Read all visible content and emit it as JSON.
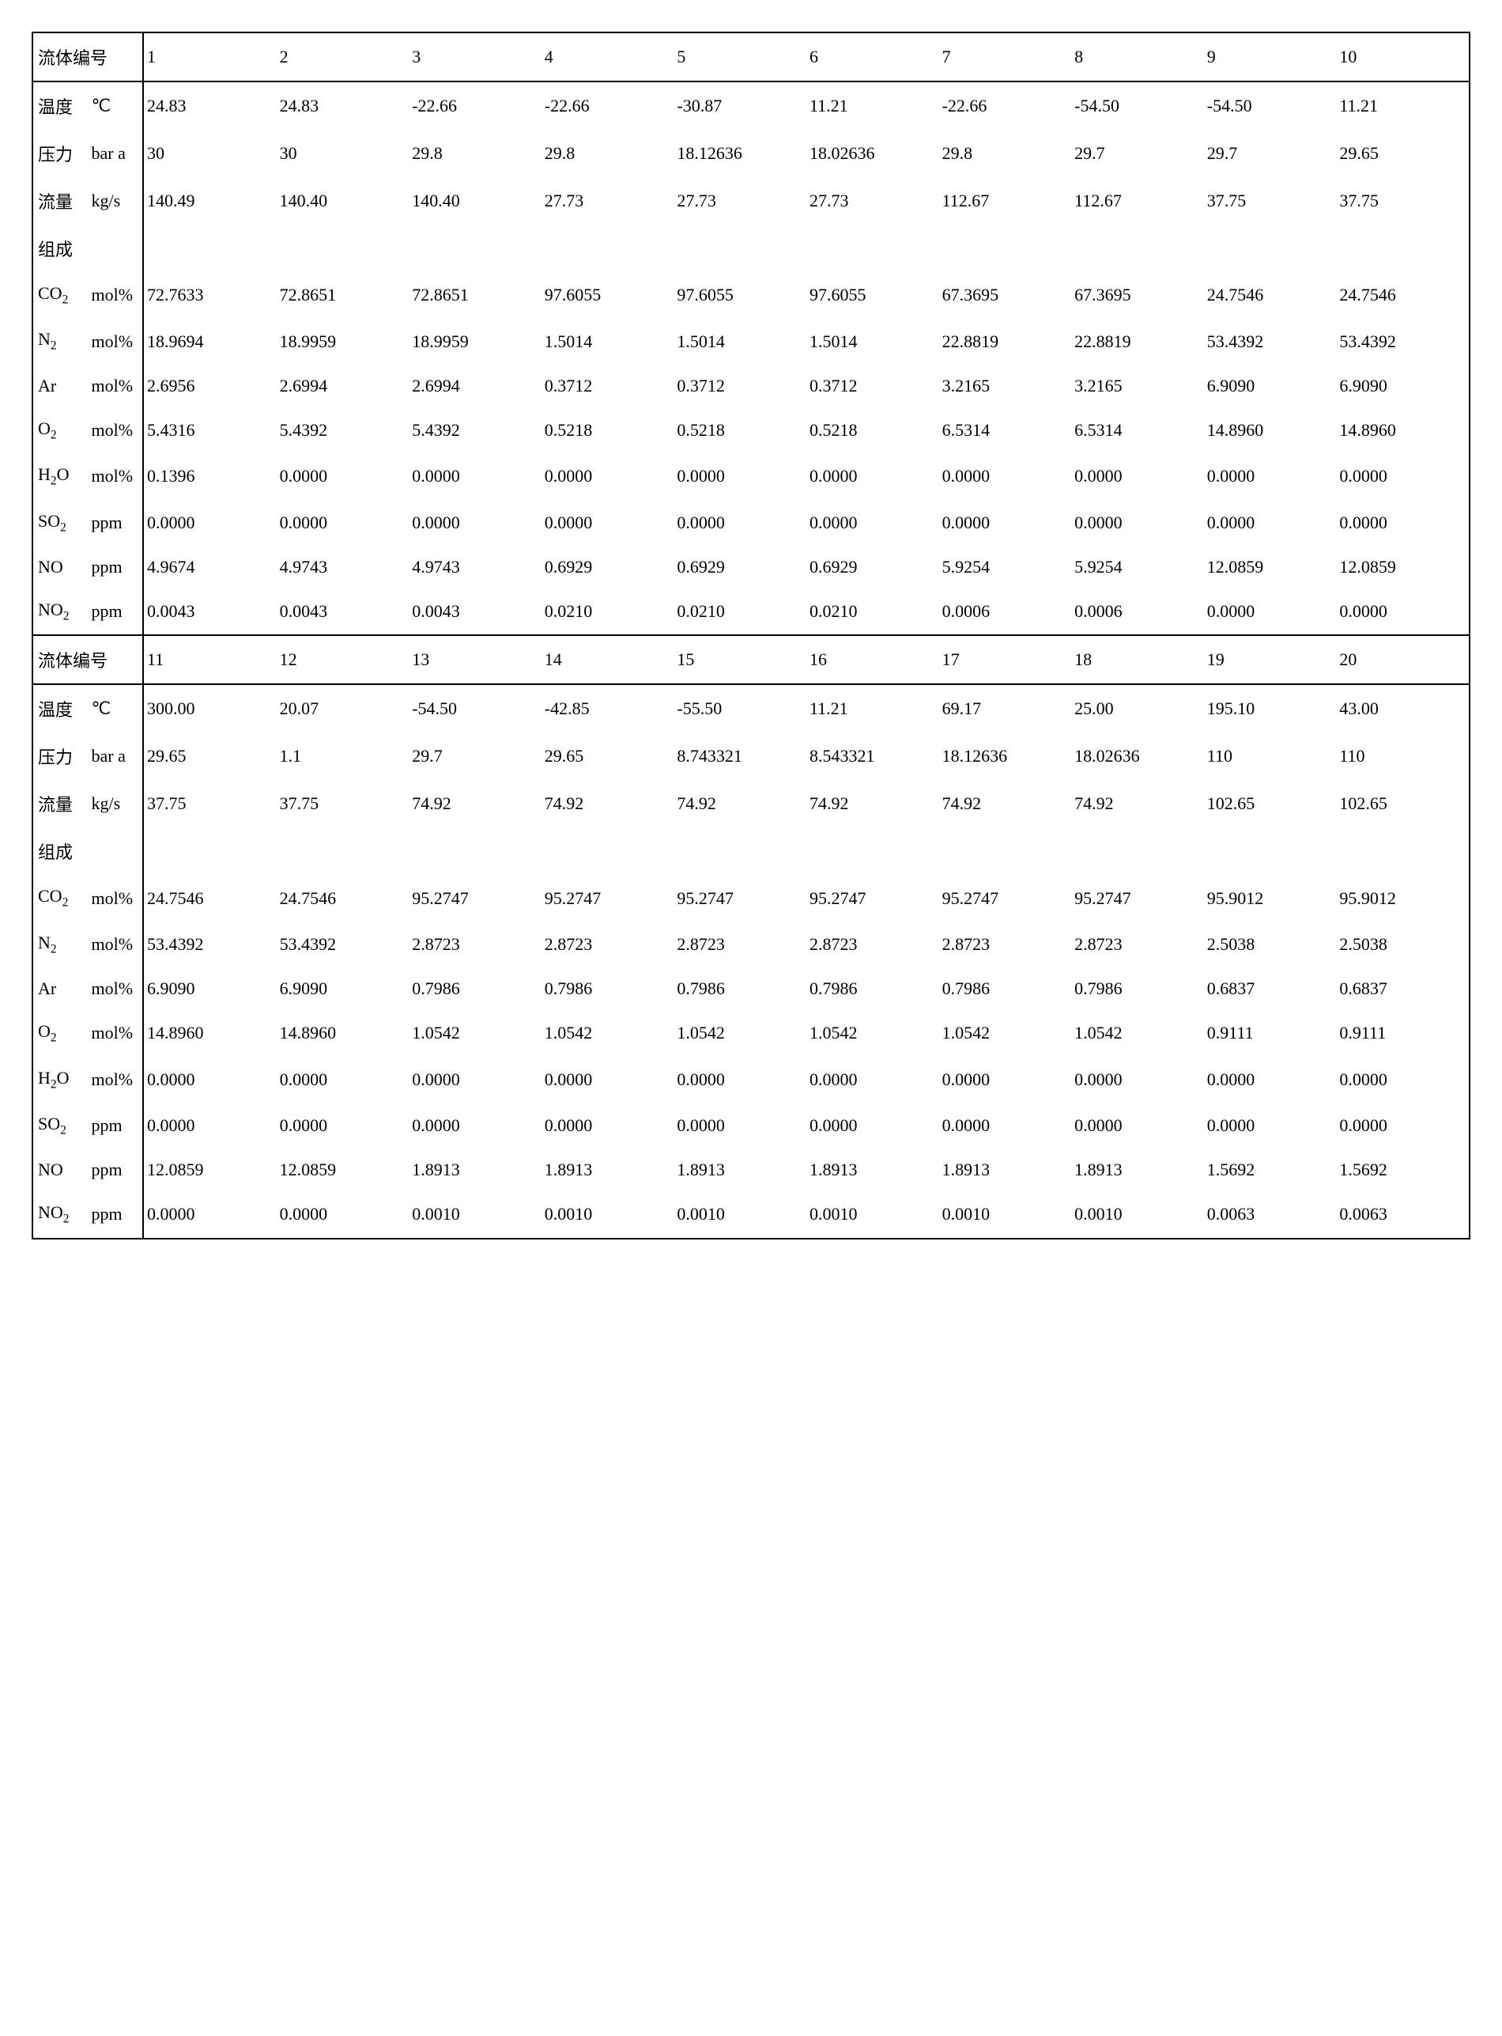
{
  "sections": [
    {
      "header_label": "流体编号",
      "col_headers": [
        "1",
        "2",
        "3",
        "4",
        "5",
        "6",
        "7",
        "8",
        "9",
        "10"
      ],
      "rows": [
        {
          "label": "温度",
          "unit": "℃",
          "values": [
            "24.83",
            "24.83",
            "-22.66",
            "-22.66",
            "-30.87",
            "11.21",
            "-22.66",
            "-54.50",
            "-54.50",
            "11.21"
          ]
        },
        {
          "label": "压力",
          "unit": "bar a",
          "values": [
            "30",
            "30",
            "29.8",
            "29.8",
            "18.12636",
            "18.02636",
            "29.8",
            "29.7",
            "29.7",
            "29.65"
          ]
        },
        {
          "label": "流量",
          "unit": "kg/s",
          "values": [
            "140.49",
            "140.40",
            "140.40",
            "27.73",
            "27.73",
            "27.73",
            "112.67",
            "112.67",
            "37.75",
            "37.75"
          ]
        },
        {
          "label": "组成",
          "unit": "",
          "values": [
            "",
            "",
            "",
            "",
            "",
            "",
            "",
            "",
            "",
            ""
          ]
        },
        {
          "label_html": "CO<sub>2</sub>",
          "unit": "mol%",
          "values": [
            "72.7633",
            "72.8651",
            "72.8651",
            "97.6055",
            "97.6055",
            "97.6055",
            "67.3695",
            "67.3695",
            "24.7546",
            "24.7546"
          ]
        },
        {
          "label_html": "N<sub>2</sub>",
          "unit": "mol%",
          "values": [
            "18.9694",
            "18.9959",
            "18.9959",
            "1.5014",
            "1.5014",
            "1.5014",
            "22.8819",
            "22.8819",
            "53.4392",
            "53.4392"
          ]
        },
        {
          "label": "Ar",
          "unit": "mol%",
          "values": [
            "2.6956",
            "2.6994",
            "2.6994",
            "0.3712",
            "0.3712",
            "0.3712",
            "3.2165",
            "3.2165",
            "6.9090",
            "6.9090"
          ]
        },
        {
          "label_html": "O<sub>2</sub>",
          "unit": "mol%",
          "values": [
            "5.4316",
            "5.4392",
            "5.4392",
            "0.5218",
            "0.5218",
            "0.5218",
            "6.5314",
            "6.5314",
            "14.8960",
            "14.8960"
          ]
        },
        {
          "label_html": "H<sub>2</sub>O",
          "unit": "mol%",
          "values": [
            "0.1396",
            "0.0000",
            "0.0000",
            "0.0000",
            "0.0000",
            "0.0000",
            "0.0000",
            "0.0000",
            "0.0000",
            "0.0000"
          ]
        },
        {
          "label_html": "SO<sub>2</sub>",
          "unit": "ppm",
          "values": [
            "0.0000",
            "0.0000",
            "0.0000",
            "0.0000",
            "0.0000",
            "0.0000",
            "0.0000",
            "0.0000",
            "0.0000",
            "0.0000"
          ]
        },
        {
          "label": "NO",
          "unit": "ppm",
          "values": [
            "4.9674",
            "4.9743",
            "4.9743",
            "0.6929",
            "0.6929",
            "0.6929",
            "5.9254",
            "5.9254",
            "12.0859",
            "12.0859"
          ]
        },
        {
          "label_html": "NO<sub>2</sub>",
          "unit": "ppm",
          "values": [
            "0.0043",
            "0.0043",
            "0.0043",
            "0.0210",
            "0.0210",
            "0.0210",
            "0.0006",
            "0.0006",
            "0.0000",
            "0.0000"
          ]
        }
      ]
    },
    {
      "header_label": "流体编号",
      "col_headers": [
        "11",
        "12",
        "13",
        "14",
        "15",
        "16",
        "17",
        "18",
        "19",
        "20"
      ],
      "rows": [
        {
          "label": "温度",
          "unit": "℃",
          "values": [
            "300.00",
            "20.07",
            "-54.50",
            "-42.85",
            "-55.50",
            "11.21",
            "69.17",
            "25.00",
            "195.10",
            "43.00"
          ]
        },
        {
          "label": "压力",
          "unit": "bar a",
          "values": [
            "29.65",
            "1.1",
            "29.7",
            "29.65",
            "8.743321",
            "8.543321",
            "18.12636",
            "18.02636",
            "110",
            "110"
          ]
        },
        {
          "label": "流量",
          "unit": "kg/s",
          "values": [
            "37.75",
            "37.75",
            "74.92",
            "74.92",
            "74.92",
            "74.92",
            "74.92",
            "74.92",
            "102.65",
            "102.65"
          ]
        },
        {
          "label": "组成",
          "unit": "",
          "values": [
            "",
            "",
            "",
            "",
            "",
            "",
            "",
            "",
            "",
            ""
          ]
        },
        {
          "label_html": "CO<sub>2</sub>",
          "unit": "mol%",
          "values": [
            "24.7546",
            "24.7546",
            "95.2747",
            "95.2747",
            "95.2747",
            "95.2747",
            "95.2747",
            "95.2747",
            "95.9012",
            "95.9012"
          ]
        },
        {
          "label_html": "N<sub>2</sub>",
          "unit": "mol%",
          "values": [
            "53.4392",
            "53.4392",
            "2.8723",
            "2.8723",
            "2.8723",
            "2.8723",
            "2.8723",
            "2.8723",
            "2.5038",
            "2.5038"
          ]
        },
        {
          "label": "Ar",
          "unit": "mol%",
          "values": [
            "6.9090",
            "6.9090",
            "0.7986",
            "0.7986",
            "0.7986",
            "0.7986",
            "0.7986",
            "0.7986",
            "0.6837",
            "0.6837"
          ]
        },
        {
          "label_html": "O<sub>2</sub>",
          "unit": "mol%",
          "values": [
            "14.8960",
            "14.8960",
            "1.0542",
            "1.0542",
            "1.0542",
            "1.0542",
            "1.0542",
            "1.0542",
            "0.9111",
            "0.9111"
          ]
        },
        {
          "label_html": "H<sub>2</sub>O",
          "unit": "mol%",
          "values": [
            "0.0000",
            "0.0000",
            "0.0000",
            "0.0000",
            "0.0000",
            "0.0000",
            "0.0000",
            "0.0000",
            "0.0000",
            "0.0000"
          ]
        },
        {
          "label_html": "SO<sub>2</sub>",
          "unit": "ppm",
          "values": [
            "0.0000",
            "0.0000",
            "0.0000",
            "0.0000",
            "0.0000",
            "0.0000",
            "0.0000",
            "0.0000",
            "0.0000",
            "0.0000"
          ]
        },
        {
          "label": "NO",
          "unit": "ppm",
          "values": [
            "12.0859",
            "12.0859",
            "1.8913",
            "1.8913",
            "1.8913",
            "1.8913",
            "1.8913",
            "1.8913",
            "1.5692",
            "1.5692"
          ]
        },
        {
          "label_html": "NO<sub>2</sub>",
          "unit": "ppm",
          "values": [
            "0.0000",
            "0.0000",
            "0.0010",
            "0.0010",
            "0.0010",
            "0.0010",
            "0.0010",
            "0.0010",
            "0.0063",
            "0.0063"
          ]
        }
      ]
    }
  ]
}
